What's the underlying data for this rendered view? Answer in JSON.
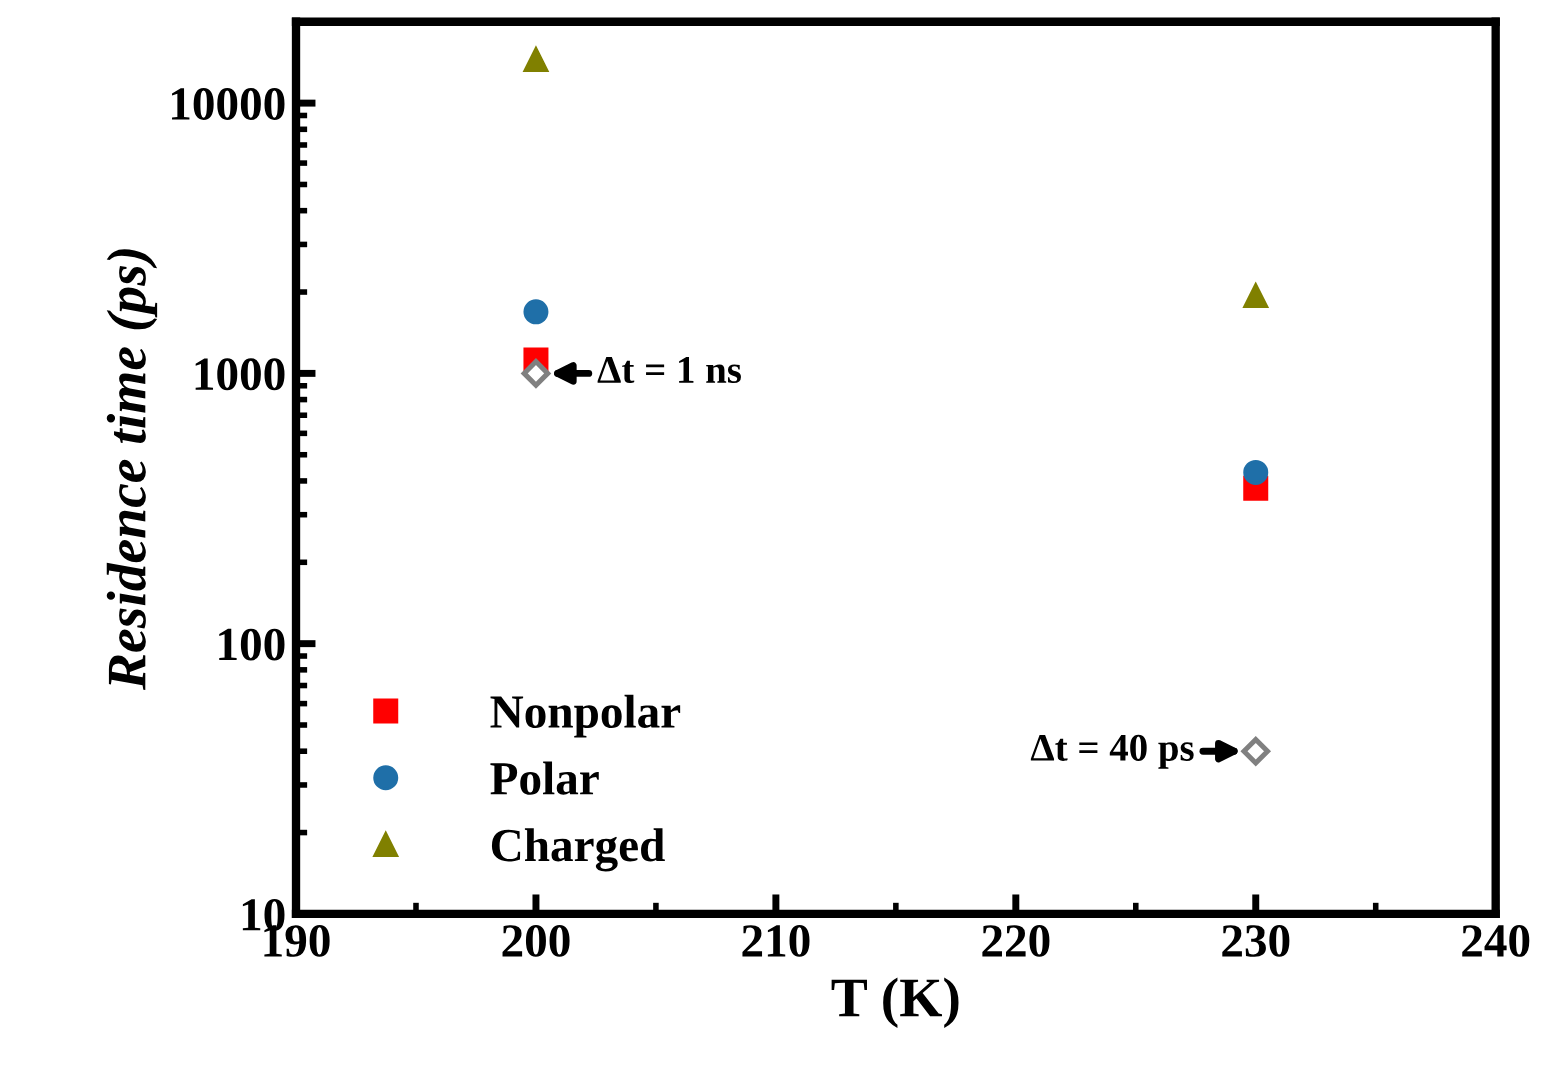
{
  "chart_data": {
    "type": "scatter",
    "xlabel": "T (K)",
    "ylabel": "Residence time (ps)",
    "x": [
      200,
      230
    ],
    "series": [
      {
        "name": "Nonpolar",
        "color": "#ff0000",
        "marker": "square",
        "values": [
          1120,
          376
        ]
      },
      {
        "name": "Polar",
        "color": "#1f6fa8",
        "marker": "circle",
        "values": [
          1690,
          430
        ]
      },
      {
        "name": "Charged",
        "color": "#808000",
        "marker": "triangle",
        "values": [
          14500,
          1940
        ]
      },
      {
        "color": "#808080",
        "marker": "diamond",
        "values": [
          1000,
          40
        ]
      }
    ],
    "annotations": [
      {
        "text": "Δt = 1 ns",
        "x": 200,
        "y": 1000
      },
      {
        "text": "Δt = 40 ps",
        "x": 230,
        "y": 40
      }
    ],
    "log": "y",
    "xlim": [
      190,
      240
    ],
    "xticks": [
      190,
      200,
      210,
      220,
      230,
      240
    ],
    "ylim": [
      10,
      20000
    ],
    "yticks": [
      10,
      100,
      1000,
      10000
    ],
    "grid": false,
    "legend": "bottom left"
  }
}
